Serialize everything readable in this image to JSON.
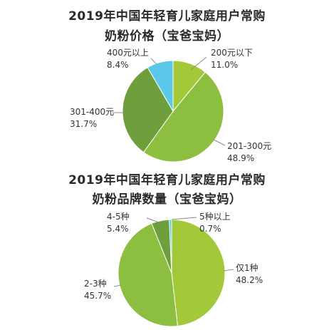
{
  "colors": {
    "light_green": "#a3c93a",
    "mid_green": "#8cbf3f",
    "dark_green": "#6f9e3c",
    "blue": "#5bc8ea",
    "leader_line": "#8c8c8c"
  },
  "chart_data": [
    {
      "type": "pie",
      "title": "2019年中国年轻育儿家庭用户常购",
      "subtitle": "奶粉价格（宝爸宝妈）",
      "slices": [
        {
          "label": "200元以下",
          "value": 11.0,
          "value_label": "11.0%",
          "color": "#a3c93a"
        },
        {
          "label": "201-300元",
          "value": 48.9,
          "value_label": "48.9%",
          "color": "#8cbf3f"
        },
        {
          "label": "301-400元",
          "value": 31.7,
          "value_label": "31.7%",
          "color": "#6f9e3c"
        },
        {
          "label": "400元以上",
          "value": 8.4,
          "value_label": "8.4%",
          "color": "#5bc8ea"
        }
      ]
    },
    {
      "type": "pie",
      "title": "2019年中国年轻育儿家庭用户常购",
      "subtitle": "奶粉品牌数量（宝爸宝妈）",
      "slices": [
        {
          "label": "仅1种",
          "value": 48.2,
          "value_label": "48.2%",
          "color": "#a3c93a"
        },
        {
          "label": "2-3种",
          "value": 45.7,
          "value_label": "45.7%",
          "color": "#8cbf3f"
        },
        {
          "label": "4-5种",
          "value": 5.4,
          "value_label": "5.4%",
          "color": "#6f9e3c"
        },
        {
          "label": "5种以上",
          "value": 0.7,
          "value_label": "0.7%",
          "color": "#5bc8ea"
        }
      ]
    }
  ]
}
